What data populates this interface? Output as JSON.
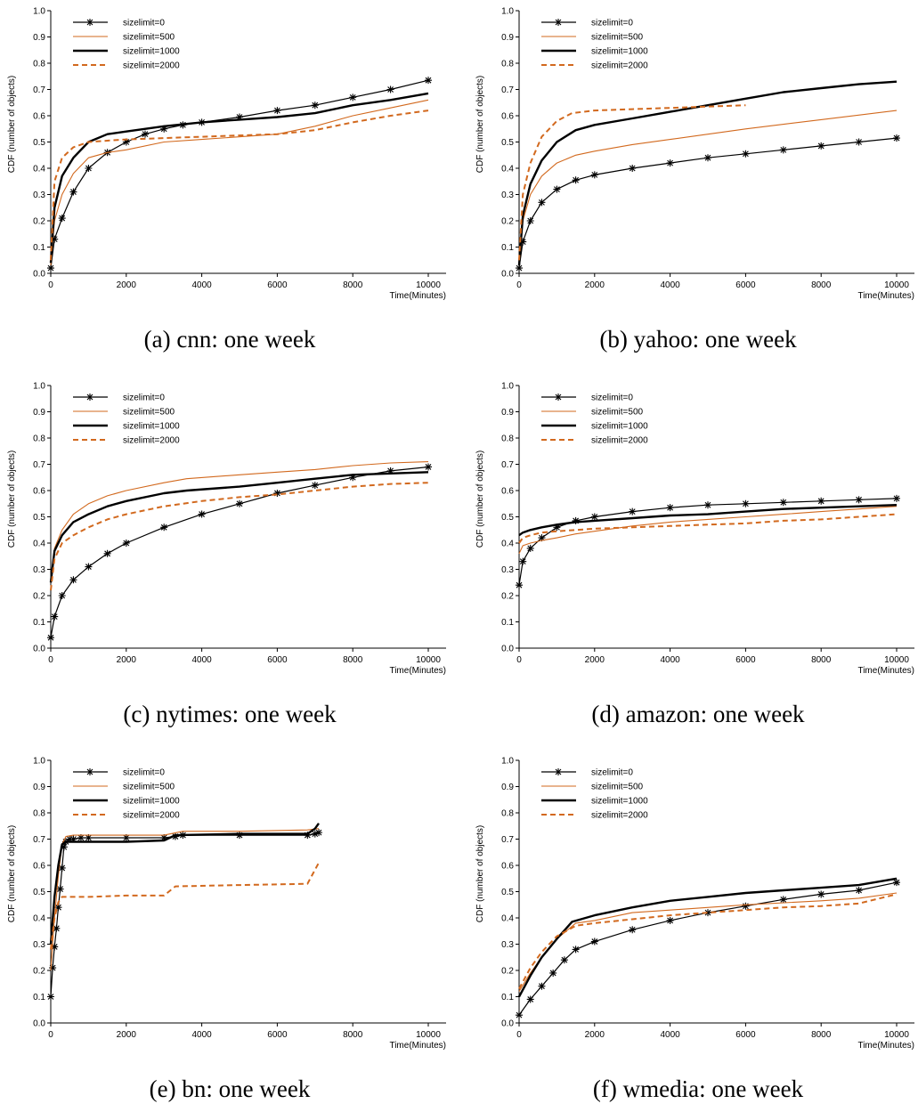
{
  "colors": {
    "black": "#000000",
    "orange": "#d2691e"
  },
  "legend_entries": [
    "sizelimit=0",
    "sizelimit=500",
    "sizelimit=1000",
    "sizelimit=2000"
  ],
  "chart_data": [
    {
      "type": "line",
      "caption": "(a) cnn: one week",
      "xlabel": "Time(Minutes)",
      "ylabel": "CDF (number of objects)",
      "xlim": [
        0,
        10000
      ],
      "ylim": [
        0,
        1
      ],
      "xticks": [
        0,
        2000,
        4000,
        6000,
        8000,
        10000
      ],
      "yticks": [
        0.0,
        0.1,
        0.2,
        0.3,
        0.4,
        0.5,
        0.6,
        0.7,
        0.8,
        0.9,
        1.0
      ],
      "legend_position": "top-left",
      "grid": false,
      "series": [
        {
          "name": "sizelimit=0",
          "style": "star",
          "x": [
            0,
            100,
            300,
            600,
            1000,
            1500,
            2000,
            2500,
            3000,
            3500,
            4000,
            5000,
            6000,
            7000,
            8000,
            9000,
            10000
          ],
          "y": [
            0.02,
            0.13,
            0.21,
            0.31,
            0.4,
            0.46,
            0.5,
            0.53,
            0.55,
            0.565,
            0.575,
            0.595,
            0.62,
            0.64,
            0.67,
            0.7,
            0.735
          ]
        },
        {
          "name": "sizelimit=500",
          "style": "thin",
          "x": [
            0,
            100,
            300,
            600,
            1000,
            1500,
            2000,
            3000,
            4000,
            6000,
            7000,
            8000,
            9000,
            10000
          ],
          "y": [
            0.03,
            0.2,
            0.3,
            0.38,
            0.44,
            0.46,
            0.47,
            0.5,
            0.51,
            0.53,
            0.56,
            0.6,
            0.63,
            0.66
          ]
        },
        {
          "name": "sizelimit=1000",
          "style": "thick",
          "x": [
            0,
            100,
            300,
            600,
            1000,
            1500,
            2000,
            3000,
            4000,
            5000,
            6000,
            7000,
            8000,
            9000,
            10000
          ],
          "y": [
            0.04,
            0.25,
            0.37,
            0.44,
            0.5,
            0.53,
            0.54,
            0.56,
            0.575,
            0.585,
            0.595,
            0.61,
            0.64,
            0.66,
            0.685
          ]
        },
        {
          "name": "sizelimit=2000",
          "style": "dash",
          "x": [
            0,
            100,
            300,
            600,
            1000,
            1500,
            2000,
            3000,
            4000,
            5000,
            6000,
            7000,
            8000,
            9000,
            10000
          ],
          "y": [
            0.05,
            0.35,
            0.44,
            0.48,
            0.5,
            0.505,
            0.51,
            0.515,
            0.52,
            0.525,
            0.53,
            0.545,
            0.575,
            0.6,
            0.62
          ]
        }
      ]
    },
    {
      "type": "line",
      "caption": "(b) yahoo: one week",
      "xlabel": "Time(Minutes)",
      "ylabel": "CDF (number of objects)",
      "xlim": [
        0,
        10000
      ],
      "ylim": [
        0,
        1
      ],
      "xticks": [
        0,
        2000,
        4000,
        6000,
        8000,
        10000
      ],
      "yticks": [
        0.0,
        0.1,
        0.2,
        0.3,
        0.4,
        0.5,
        0.6,
        0.7,
        0.8,
        0.9,
        1.0
      ],
      "legend_position": "top-left",
      "grid": false,
      "series": [
        {
          "name": "sizelimit=0",
          "style": "star",
          "x": [
            0,
            100,
            300,
            600,
            1000,
            1500,
            2000,
            3000,
            4000,
            5000,
            6000,
            7000,
            8000,
            9000,
            10000
          ],
          "y": [
            0.02,
            0.12,
            0.2,
            0.27,
            0.32,
            0.355,
            0.375,
            0.4,
            0.42,
            0.44,
            0.455,
            0.47,
            0.485,
            0.5,
            0.515
          ]
        },
        {
          "name": "sizelimit=500",
          "style": "thin",
          "x": [
            0,
            100,
            300,
            600,
            1000,
            1500,
            2000,
            3000,
            4000,
            6000,
            8000,
            10000
          ],
          "y": [
            0.03,
            0.2,
            0.3,
            0.37,
            0.42,
            0.45,
            0.465,
            0.49,
            0.51,
            0.55,
            0.585,
            0.62
          ]
        },
        {
          "name": "sizelimit=1000",
          "style": "thick",
          "x": [
            0,
            100,
            300,
            600,
            1000,
            1500,
            2000,
            3000,
            4000,
            5000,
            6000,
            7000,
            8000,
            9000,
            10000
          ],
          "y": [
            0.03,
            0.22,
            0.34,
            0.43,
            0.5,
            0.545,
            0.565,
            0.59,
            0.615,
            0.64,
            0.665,
            0.69,
            0.705,
            0.72,
            0.73
          ]
        },
        {
          "name": "sizelimit=2000",
          "style": "dash",
          "x": [
            0,
            100,
            300,
            600,
            1000,
            1400,
            2000,
            3000,
            4000,
            5000,
            6000
          ],
          "y": [
            0.05,
            0.3,
            0.42,
            0.52,
            0.58,
            0.61,
            0.62,
            0.625,
            0.63,
            0.635,
            0.64
          ]
        }
      ]
    },
    {
      "type": "line",
      "caption": "(c) nytimes: one week",
      "xlabel": "Time(Minutes)",
      "ylabel": "CDF (number of objects)",
      "xlim": [
        0,
        10000
      ],
      "ylim": [
        0,
        1
      ],
      "xticks": [
        0,
        2000,
        4000,
        6000,
        8000,
        10000
      ],
      "yticks": [
        0.0,
        0.1,
        0.2,
        0.3,
        0.4,
        0.5,
        0.6,
        0.7,
        0.8,
        0.9,
        1.0
      ],
      "legend_position": "top-left",
      "grid": false,
      "series": [
        {
          "name": "sizelimit=0",
          "style": "star",
          "x": [
            0,
            100,
            300,
            600,
            1000,
            1500,
            2000,
            3000,
            4000,
            5000,
            6000,
            7000,
            8000,
            9000,
            10000
          ],
          "y": [
            0.04,
            0.12,
            0.2,
            0.26,
            0.31,
            0.36,
            0.4,
            0.46,
            0.51,
            0.55,
            0.59,
            0.62,
            0.65,
            0.675,
            0.69
          ]
        },
        {
          "name": "sizelimit=500",
          "style": "thin",
          "x": [
            0,
            100,
            300,
            600,
            1000,
            1500,
            2000,
            3000,
            3600,
            5000,
            6000,
            7000,
            8000,
            9000,
            10000
          ],
          "y": [
            0.25,
            0.38,
            0.45,
            0.51,
            0.55,
            0.58,
            0.6,
            0.63,
            0.645,
            0.66,
            0.67,
            0.68,
            0.695,
            0.705,
            0.71
          ]
        },
        {
          "name": "sizelimit=1000",
          "style": "thick",
          "x": [
            0,
            100,
            300,
            600,
            1000,
            1500,
            2000,
            3000,
            3600,
            5000,
            6000,
            7000,
            8000,
            9000,
            10000
          ],
          "y": [
            0.25,
            0.37,
            0.43,
            0.48,
            0.51,
            0.54,
            0.56,
            0.59,
            0.6,
            0.615,
            0.63,
            0.645,
            0.66,
            0.665,
            0.67
          ]
        },
        {
          "name": "sizelimit=2000",
          "style": "dash",
          "x": [
            0,
            100,
            300,
            600,
            1000,
            1500,
            2000,
            3000,
            4000,
            5000,
            6000,
            7000,
            8000,
            9000,
            10000
          ],
          "y": [
            0.22,
            0.34,
            0.4,
            0.43,
            0.46,
            0.49,
            0.51,
            0.54,
            0.56,
            0.575,
            0.585,
            0.6,
            0.615,
            0.625,
            0.63
          ]
        }
      ]
    },
    {
      "type": "line",
      "caption": "(d) amazon: one week",
      "xlabel": "Time(Minutes)",
      "ylabel": "CDF (number of objects)",
      "xlim": [
        0,
        10000
      ],
      "ylim": [
        0,
        1
      ],
      "xticks": [
        0,
        2000,
        4000,
        6000,
        8000,
        10000
      ],
      "yticks": [
        0.0,
        0.1,
        0.2,
        0.3,
        0.4,
        0.5,
        0.6,
        0.7,
        0.8,
        0.9,
        1.0
      ],
      "legend_position": "top-left",
      "grid": false,
      "series": [
        {
          "name": "sizelimit=0",
          "style": "star",
          "x": [
            0,
            100,
            300,
            600,
            1000,
            1500,
            2000,
            3000,
            4000,
            5000,
            6000,
            7000,
            8000,
            9000,
            10000
          ],
          "y": [
            0.24,
            0.33,
            0.38,
            0.42,
            0.46,
            0.485,
            0.5,
            0.52,
            0.535,
            0.545,
            0.55,
            0.555,
            0.56,
            0.565,
            0.57
          ]
        },
        {
          "name": "sizelimit=500",
          "style": "thin",
          "x": [
            0,
            100,
            300,
            600,
            1000,
            1500,
            2000,
            3000,
            4000,
            5000,
            6000,
            7000,
            8000,
            9000,
            10000
          ],
          "y": [
            0.36,
            0.39,
            0.4,
            0.41,
            0.42,
            0.435,
            0.445,
            0.465,
            0.48,
            0.49,
            0.5,
            0.51,
            0.52,
            0.53,
            0.54
          ]
        },
        {
          "name": "sizelimit=1000",
          "style": "thick",
          "x": [
            0,
            100,
            300,
            600,
            1000,
            1500,
            2000,
            3000,
            4000,
            5000,
            6000,
            7000,
            8000,
            9000,
            10000
          ],
          "y": [
            0.43,
            0.44,
            0.45,
            0.46,
            0.47,
            0.48,
            0.485,
            0.495,
            0.505,
            0.51,
            0.52,
            0.53,
            0.535,
            0.54,
            0.545
          ]
        },
        {
          "name": "sizelimit=2000",
          "style": "dash",
          "x": [
            0,
            100,
            300,
            600,
            1000,
            1500,
            2000,
            3000,
            4000,
            5000,
            6000,
            7000,
            8000,
            9000,
            10000
          ],
          "y": [
            0.4,
            0.42,
            0.43,
            0.44,
            0.445,
            0.45,
            0.455,
            0.46,
            0.465,
            0.47,
            0.475,
            0.485,
            0.49,
            0.5,
            0.51
          ]
        }
      ]
    },
    {
      "type": "line",
      "caption": "(e) bn: one week",
      "xlabel": "Time(Minutes)",
      "ylabel": "CDF (number of objects)",
      "xlim": [
        0,
        10000
      ],
      "ylim": [
        0,
        1
      ],
      "xticks": [
        0,
        2000,
        4000,
        6000,
        8000,
        10000
      ],
      "yticks": [
        0.0,
        0.1,
        0.2,
        0.3,
        0.4,
        0.5,
        0.6,
        0.7,
        0.8,
        0.9,
        1.0
      ],
      "legend_position": "top-left",
      "grid": false,
      "series": [
        {
          "name": "sizelimit=0",
          "style": "star",
          "x": [
            0,
            50,
            100,
            150,
            200,
            250,
            300,
            350,
            400,
            500,
            600,
            800,
            1000,
            2000,
            3000,
            3300,
            3500,
            5000,
            6800,
            7000,
            7100
          ],
          "y": [
            0.1,
            0.21,
            0.29,
            0.36,
            0.44,
            0.51,
            0.59,
            0.67,
            0.69,
            0.7,
            0.7,
            0.705,
            0.705,
            0.705,
            0.705,
            0.71,
            0.715,
            0.715,
            0.715,
            0.72,
            0.725
          ]
        },
        {
          "name": "sizelimit=500",
          "style": "thin",
          "x": [
            0,
            100,
            200,
            300,
            400,
            600,
            1000,
            2000,
            3000,
            3500,
            5000,
            6800,
            7100
          ],
          "y": [
            0.2,
            0.4,
            0.56,
            0.68,
            0.71,
            0.715,
            0.715,
            0.715,
            0.715,
            0.73,
            0.73,
            0.735,
            0.74
          ]
        },
        {
          "name": "sizelimit=1000",
          "style": "thick",
          "x": [
            0,
            100,
            200,
            300,
            400,
            600,
            1000,
            2000,
            3000,
            3300,
            5000,
            6800,
            7000,
            7100
          ],
          "y": [
            0.3,
            0.48,
            0.6,
            0.68,
            0.69,
            0.69,
            0.69,
            0.69,
            0.695,
            0.715,
            0.72,
            0.72,
            0.74,
            0.76
          ]
        },
        {
          "name": "sizelimit=2000",
          "style": "dash",
          "x": [
            0,
            100,
            200,
            300,
            400,
            1000,
            2000,
            3000,
            3300,
            5000,
            6800,
            7100
          ],
          "y": [
            0.28,
            0.4,
            0.46,
            0.48,
            0.48,
            0.48,
            0.485,
            0.485,
            0.52,
            0.525,
            0.53,
            0.61
          ]
        }
      ]
    },
    {
      "type": "line",
      "caption": "(f) wmedia: one week",
      "xlabel": "Time(Minutes)",
      "ylabel": "CDF (number of objects)",
      "xlim": [
        0,
        10000
      ],
      "ylim": [
        0,
        1
      ],
      "xticks": [
        0,
        2000,
        4000,
        6000,
        8000,
        10000
      ],
      "yticks": [
        0.0,
        0.1,
        0.2,
        0.3,
        0.4,
        0.5,
        0.6,
        0.7,
        0.8,
        0.9,
        1.0
      ],
      "legend_position": "top-left",
      "grid": false,
      "series": [
        {
          "name": "sizelimit=0",
          "style": "star",
          "x": [
            0,
            300,
            600,
            900,
            1200,
            1500,
            2000,
            3000,
            4000,
            5000,
            6000,
            7000,
            8000,
            9000,
            10000
          ],
          "y": [
            0.03,
            0.09,
            0.14,
            0.19,
            0.24,
            0.28,
            0.31,
            0.355,
            0.39,
            0.42,
            0.445,
            0.47,
            0.49,
            0.505,
            0.535
          ]
        },
        {
          "name": "sizelimit=500",
          "style": "thin",
          "x": [
            0,
            300,
            600,
            1000,
            1500,
            2000,
            3000,
            4000,
            6000,
            8000,
            9000,
            10000
          ],
          "y": [
            0.12,
            0.19,
            0.25,
            0.32,
            0.38,
            0.39,
            0.42,
            0.43,
            0.45,
            0.465,
            0.475,
            0.495
          ]
        },
        {
          "name": "sizelimit=1000",
          "style": "thick",
          "x": [
            0,
            300,
            600,
            1000,
            1400,
            2000,
            3000,
            4000,
            5000,
            6000,
            7000,
            8000,
            9000,
            10000
          ],
          "y": [
            0.1,
            0.18,
            0.25,
            0.32,
            0.385,
            0.41,
            0.44,
            0.465,
            0.48,
            0.495,
            0.505,
            0.515,
            0.525,
            0.55
          ]
        },
        {
          "name": "sizelimit=2000",
          "style": "dash",
          "x": [
            0,
            300,
            600,
            1000,
            1500,
            2000,
            3000,
            4000,
            5000,
            6000,
            7000,
            8000,
            9000,
            10000
          ],
          "y": [
            0.13,
            0.21,
            0.27,
            0.33,
            0.37,
            0.38,
            0.395,
            0.41,
            0.42,
            0.43,
            0.44,
            0.445,
            0.455,
            0.49
          ]
        }
      ]
    }
  ]
}
